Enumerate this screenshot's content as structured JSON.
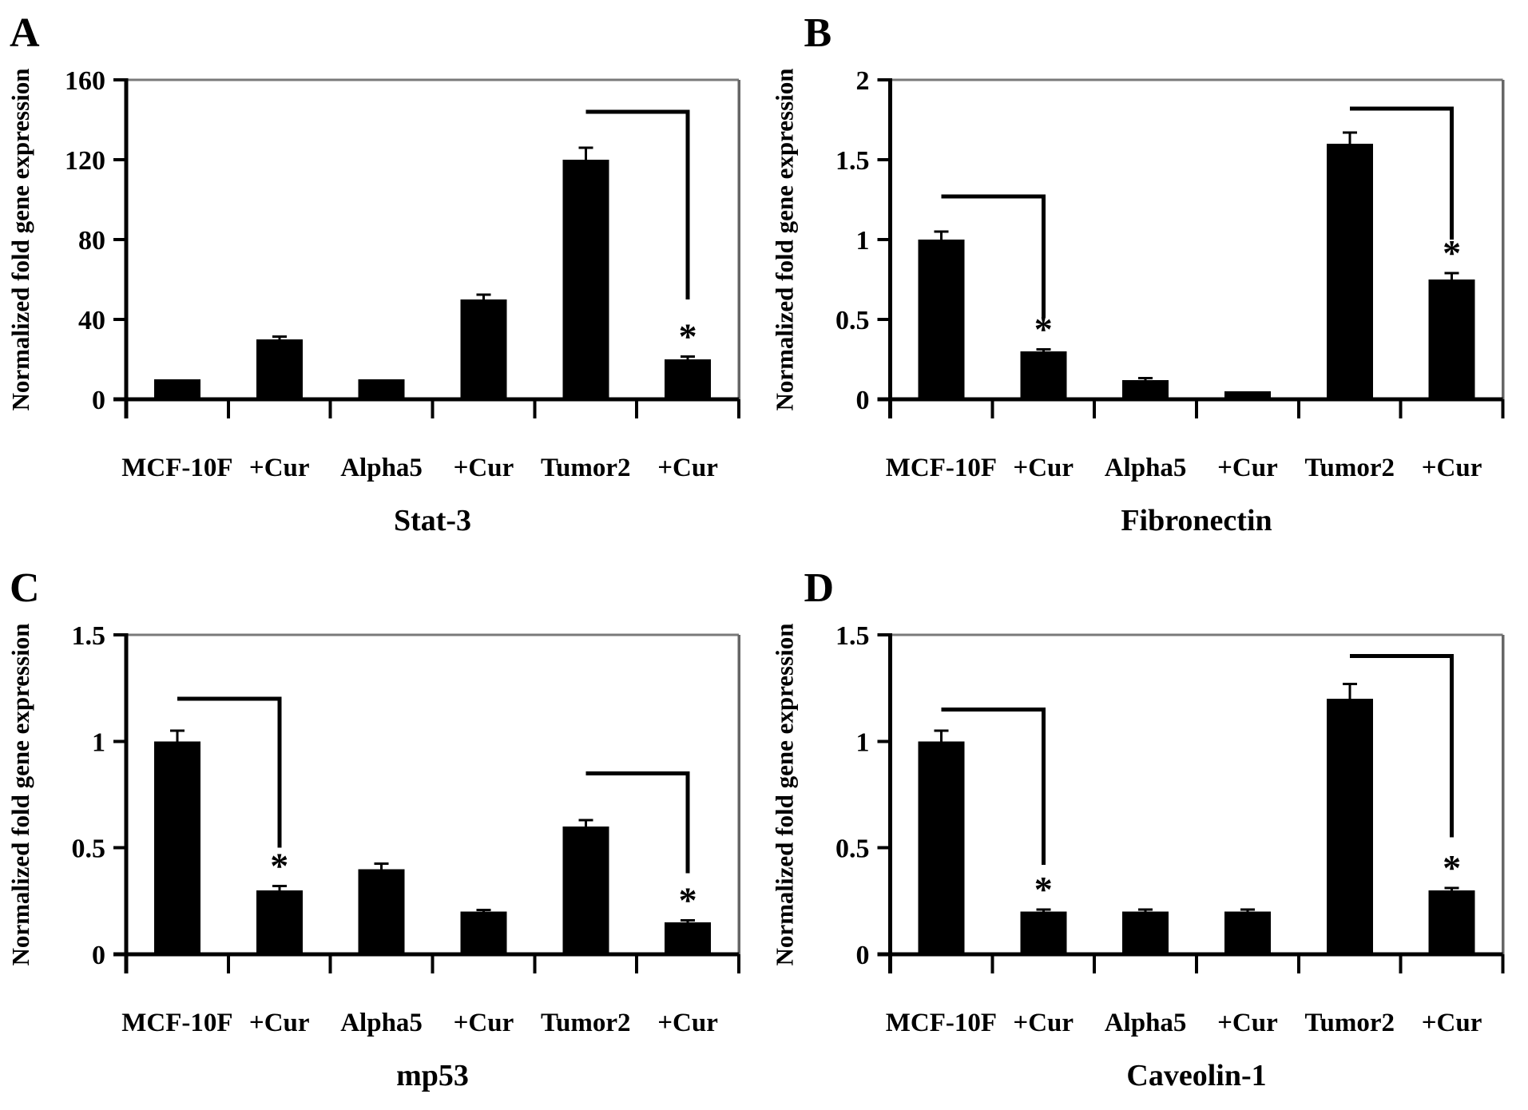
{
  "figure": {
    "ylabel": "Normalized fold gene expression",
    "categories": [
      "MCF-10F",
      "+Cur",
      "Alpha5",
      "+Cur",
      "Tumor2",
      "+Cur"
    ],
    "sig_marker": "*",
    "colors": {
      "bar": "#000000",
      "axis": "#000000",
      "frame_top": "#7a7a7a",
      "frame_right": "#666666",
      "background": "#ffffff"
    }
  },
  "chart_data": [
    {
      "type": "bar",
      "letter": "A",
      "title": "Stat-3",
      "xlabel": "",
      "ylabel": "Normalized fold gene expression",
      "categories": [
        "MCF-10F",
        "+Cur",
        "Alpha5",
        "+Cur",
        "Tumor2",
        "+Cur"
      ],
      "values": [
        10,
        30,
        10,
        50,
        120,
        20
      ],
      "errors": [
        0,
        1.5,
        0,
        2.5,
        6,
        1.5
      ],
      "significant": [
        5
      ],
      "brackets": [
        {
          "from": 4,
          "to": 5,
          "level": 144,
          "drop_to": 50
        }
      ],
      "ylim": [
        0,
        160
      ],
      "yticks": [
        0,
        40,
        80,
        120,
        160
      ],
      "ytick_labels": [
        "0",
        "40",
        "80",
        "120",
        "160"
      ],
      "grid": false,
      "legend": false
    },
    {
      "type": "bar",
      "letter": "B",
      "title": "Fibronectin",
      "xlabel": "",
      "ylabel": "Normalized fold gene expression",
      "categories": [
        "MCF-10F",
        "+Cur",
        "Alpha5",
        "+Cur",
        "Tumor2",
        "+Cur"
      ],
      "values": [
        1.0,
        0.3,
        0.12,
        0.05,
        1.6,
        0.75
      ],
      "errors": [
        0.05,
        0.012,
        0.012,
        0,
        0.07,
        0.04
      ],
      "significant": [
        1,
        5
      ],
      "brackets": [
        {
          "from": 0,
          "to": 1,
          "level": 1.27,
          "drop_to": 0.51
        },
        {
          "from": 4,
          "to": 5,
          "level": 1.82,
          "drop_to": 1.0
        }
      ],
      "ylim": [
        0,
        2
      ],
      "yticks": [
        0,
        0.5,
        1,
        1.5,
        2
      ],
      "ytick_labels": [
        "0",
        "0.5",
        "1",
        "1.5",
        "2"
      ],
      "grid": false,
      "legend": false
    },
    {
      "type": "bar",
      "letter": "C",
      "title": "mp53",
      "xlabel": "",
      "ylabel": "Normalized fold gene expression",
      "categories": [
        "MCF-10F",
        "+Cur",
        "Alpha5",
        "+Cur",
        "Tumor2",
        "+Cur"
      ],
      "values": [
        1.0,
        0.3,
        0.4,
        0.2,
        0.6,
        0.15
      ],
      "errors": [
        0.05,
        0.02,
        0.025,
        0.008,
        0.03,
        0.01
      ],
      "significant": [
        1,
        5
      ],
      "brackets": [
        {
          "from": 0,
          "to": 1,
          "level": 1.2,
          "drop_to": 0.5
        },
        {
          "from": 4,
          "to": 5,
          "level": 0.85,
          "drop_to": 0.38
        }
      ],
      "ylim": [
        0,
        1.5
      ],
      "yticks": [
        0,
        0.5,
        1,
        1.5
      ],
      "ytick_labels": [
        "0",
        "0.5",
        "1",
        "1.5"
      ],
      "grid": false,
      "legend": false
    },
    {
      "type": "bar",
      "letter": "D",
      "title": "Caveolin-1",
      "xlabel": "",
      "ylabel": "Normalized fold gene expression",
      "categories": [
        "MCF-10F",
        "+Cur",
        "Alpha5",
        "+Cur",
        "Tumor2",
        "+Cur"
      ],
      "values": [
        1.0,
        0.2,
        0.2,
        0.2,
        1.2,
        0.3
      ],
      "errors": [
        0.05,
        0.01,
        0.01,
        0.01,
        0.07,
        0.012
      ],
      "significant": [
        1,
        5
      ],
      "brackets": [
        {
          "from": 0,
          "to": 1,
          "level": 1.15,
          "drop_to": 0.42
        },
        {
          "from": 4,
          "to": 5,
          "level": 1.4,
          "drop_to": 0.55
        }
      ],
      "ylim": [
        0,
        1.5
      ],
      "yticks": [
        0,
        0.5,
        1,
        1.5
      ],
      "ytick_labels": [
        "0",
        "0.5",
        "1",
        "1.5"
      ],
      "grid": false,
      "legend": false
    }
  ]
}
